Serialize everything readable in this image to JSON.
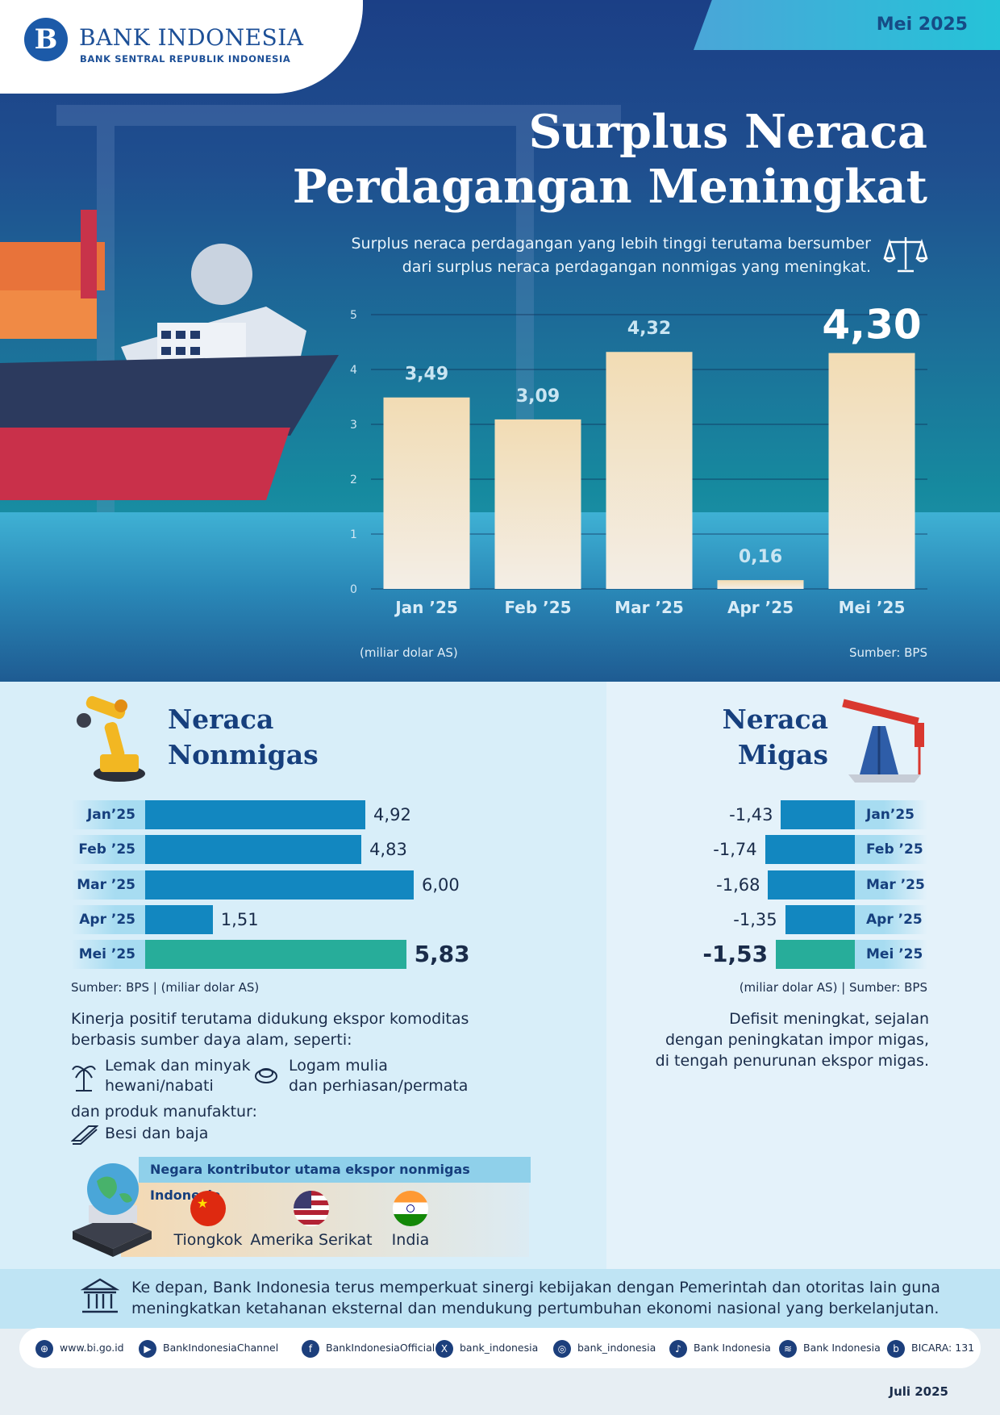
{
  "header": {
    "logo_letter": "B",
    "bank_name": "BANK INDONESIA",
    "bank_sub": "BANK SENTRAL REPUBLIK INDONESIA",
    "date": "Mei 2025"
  },
  "hero": {
    "title_line1": "Surplus Neraca",
    "title_line2": "Perdagangan Meningkat",
    "subtitle_line1": "Surplus neraca perdagangan yang lebih tinggi terutama bersumber",
    "subtitle_line2": "dari surplus neraca perdagangan nonmigas yang meningkat.",
    "unit_note": "(miliar dolar AS)",
    "source_note": "Sumber: BPS"
  },
  "chart_data": [
    {
      "type": "bar",
      "categories": [
        "Jan ’25",
        "Feb ’25",
        "Mar ’25",
        "Apr ’25",
        "Mei ’25"
      ],
      "values": [
        3.49,
        3.09,
        4.32,
        0.16,
        4.3
      ],
      "value_labels": [
        "3,49",
        "3,09",
        "4,32",
        "0,16",
        "4,30"
      ],
      "yticks": [
        "0",
        "1",
        "2",
        "3",
        "4",
        "5"
      ],
      "ylim": [
        0,
        5
      ],
      "grid": true,
      "colors": {
        "bar_top": "#f2dcb4",
        "bar_bottom": "#f3eee6",
        "label": "#c9e5f2",
        "label_highlight": "#ffffff"
      }
    },
    {
      "type": "bar",
      "categories": [
        "Jan’25",
        "Feb ’25",
        "Mar ’25",
        "Apr ’25",
        "Mei ’25"
      ],
      "values": [
        4.92,
        4.83,
        6.0,
        1.51,
        5.83
      ],
      "value_labels": [
        "4,92",
        "4,83",
        "6,00",
        "1,51",
        "5,83"
      ],
      "colors": {
        "bar": "#1287c0",
        "highlight": "#27ad9a",
        "label_bg": "#a7dcf1"
      }
    },
    {
      "type": "bar",
      "categories": [
        "Jan’25",
        "Feb ’25",
        "Mar ’25",
        "Apr ’25",
        "Mei ’25"
      ],
      "values": [
        -1.43,
        -1.74,
        -1.68,
        -1.35,
        -1.53
      ],
      "value_labels": [
        "-1,43",
        "-1,74",
        "-1,68",
        "-1,35",
        "-1,53"
      ],
      "colors": {
        "bar": "#1287c0",
        "highlight": "#27ad9a",
        "label_bg": "#a7dcf1"
      }
    }
  ],
  "nonmigas": {
    "title_line1": "Neraca",
    "title_line2": "Nonmigas",
    "note": "Sumber: BPS | (miliar dolar AS)",
    "text_line1": "Kinerja positif terutama didukung ekspor komoditas",
    "text_line2": "berbasis sumber daya alam, seperti:",
    "item1_line1": "Lemak dan minyak",
    "item1_line2": "hewani/nabati",
    "item2_line1": "Logam mulia",
    "item2_line2": "dan perhiasan/permata",
    "text_manuf": "dan produk manufaktur:",
    "item3": "Besi dan baja",
    "contrib_title": "Negara kontributor utama ekspor nonmigas Indonesia",
    "countries": [
      "Tiongkok",
      "Amerika Serikat",
      "India"
    ]
  },
  "migas": {
    "title_line1": "Neraca",
    "title_line2": "Migas",
    "note": "(miliar dolar AS) | Sumber: BPS",
    "text_line1": "Defisit meningkat, sejalan",
    "text_line2": "dengan peningkatan impor migas,",
    "text_line3": "di tengah penurunan ekspor migas."
  },
  "footer": {
    "text_line1": "Ke depan, Bank Indonesia terus memperkuat sinergi kebijakan dengan Pemerintah dan otoritas lain guna",
    "text_line2": "meningkatkan ketahanan eksternal dan mendukung pertumbuhan ekonomi nasional yang berkelanjutan.",
    "social": [
      "www.bi.go.id",
      "BankIndonesiaChannel",
      "BankIndonesiaOfficial",
      "bank_indonesia",
      "bank_indonesia",
      "Bank Indonesia",
      "Bank Indonesia",
      "BICARA: 131"
    ],
    "icons": [
      "globe-icon",
      "youtube-icon",
      "facebook-icon",
      "x-icon",
      "instagram-icon",
      "tiktok-icon",
      "spotify-icon",
      "bicara-icon"
    ],
    "issue_date": "Juli 2025"
  }
}
